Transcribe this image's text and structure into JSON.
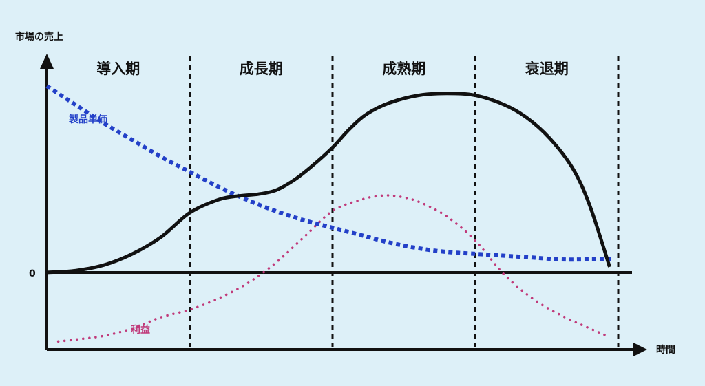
{
  "chart_data": {
    "type": "line",
    "ylabel": "市場の売上",
    "xlabel": "時間",
    "zero_label": "0",
    "x_range": [
      0,
      100
    ],
    "y_range": [
      -0.42,
      1.07
    ],
    "phases": [
      {
        "label": "導入期",
        "start": 0,
        "end": 25
      },
      {
        "label": "成長期",
        "start": 25,
        "end": 50
      },
      {
        "label": "成熟期",
        "start": 50,
        "end": 75
      },
      {
        "label": "衰退期",
        "start": 75,
        "end": 100
      }
    ],
    "series": [
      {
        "key": "sales",
        "style": "solid-thick",
        "color": "#111111",
        "x": [
          0,
          5,
          10,
          15,
          20,
          25,
          30,
          33.5,
          37,
          40,
          43,
          46,
          50,
          53,
          56,
          60,
          65,
          70,
          75,
          80,
          84,
          88,
          92,
          95,
          98.5
        ],
        "values": [
          0,
          0.01,
          0.04,
          0.1,
          0.19,
          0.32,
          0.39,
          0.41,
          0.42,
          0.44,
          0.49,
          0.56,
          0.67,
          0.77,
          0.85,
          0.91,
          0.95,
          0.96,
          0.95,
          0.9,
          0.83,
          0.72,
          0.56,
          0.36,
          0.03
        ]
      },
      {
        "key": "price",
        "name": "製品単価",
        "style": "dotted-thick",
        "color": "#2340c8",
        "x": [
          0,
          5,
          10,
          15,
          20,
          25,
          30,
          35,
          40,
          45,
          50,
          55,
          60,
          65,
          70,
          75,
          80,
          85,
          90,
          95,
          99
        ],
        "values": [
          1.0,
          0.9,
          0.8,
          0.71,
          0.62,
          0.54,
          0.46,
          0.39,
          0.33,
          0.28,
          0.24,
          0.2,
          0.16,
          0.13,
          0.11,
          0.1,
          0.09,
          0.08,
          0.07,
          0.07,
          0.07
        ]
      },
      {
        "key": "profit",
        "name": "利益",
        "style": "dotted-thin",
        "color": "#c03a7a",
        "x": [
          2,
          5,
          10,
          15,
          20,
          25,
          30,
          35,
          40,
          45,
          50,
          55,
          58,
          61,
          65,
          70,
          75,
          80,
          85,
          90,
          95,
          98
        ],
        "values": [
          -0.37,
          -0.36,
          -0.34,
          -0.3,
          -0.24,
          -0.2,
          -0.14,
          -0.06,
          0.05,
          0.19,
          0.33,
          0.39,
          0.41,
          0.41,
          0.38,
          0.3,
          0.17,
          -0.01,
          -0.14,
          -0.23,
          -0.3,
          -0.34
        ]
      }
    ],
    "colors": {
      "background": "#ddf0f8",
      "axis": "#111111"
    }
  }
}
